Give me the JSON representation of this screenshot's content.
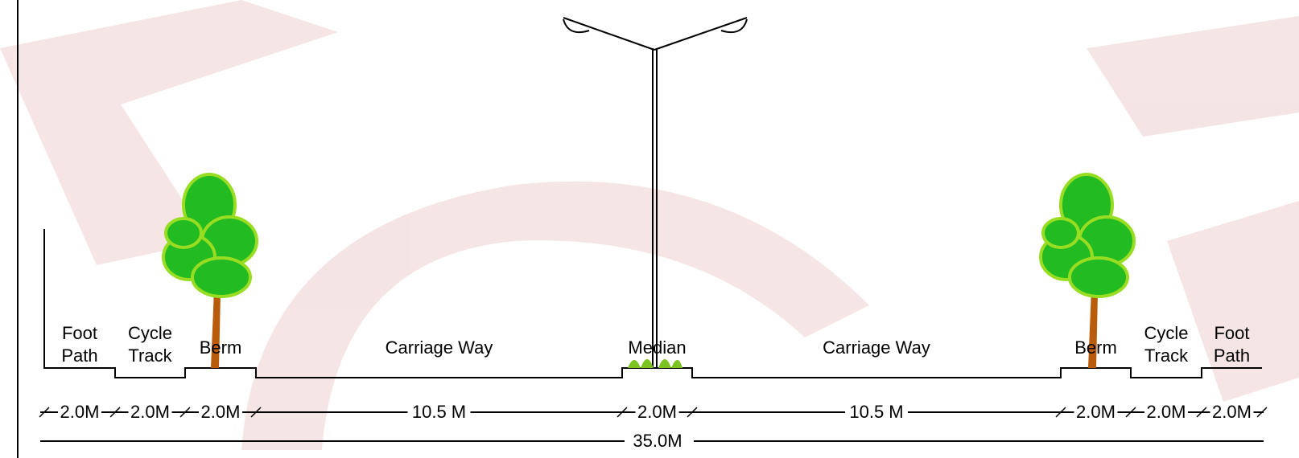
{
  "sections": [
    {
      "label": [
        "Foot",
        "Path"
      ],
      "width": "2.0M"
    },
    {
      "label": [
        "Cycle",
        "Track"
      ],
      "width": "2.0M"
    },
    {
      "label": [
        "Berm"
      ],
      "width": "2.0M"
    },
    {
      "label": [
        "Carriage Way"
      ],
      "width": "10.5 M"
    },
    {
      "label": [
        "Median"
      ],
      "width": "2.0M"
    },
    {
      "label": [
        "Carriage Way"
      ],
      "width": "10.5 M"
    },
    {
      "label": [
        "Berm"
      ],
      "width": "2.0M"
    },
    {
      "label": [
        "Cycle",
        "Track"
      ],
      "width": "2.0M"
    },
    {
      "label": [
        "Foot",
        "Path"
      ],
      "width": "2.0M"
    }
  ],
  "total_width": "35.0M"
}
